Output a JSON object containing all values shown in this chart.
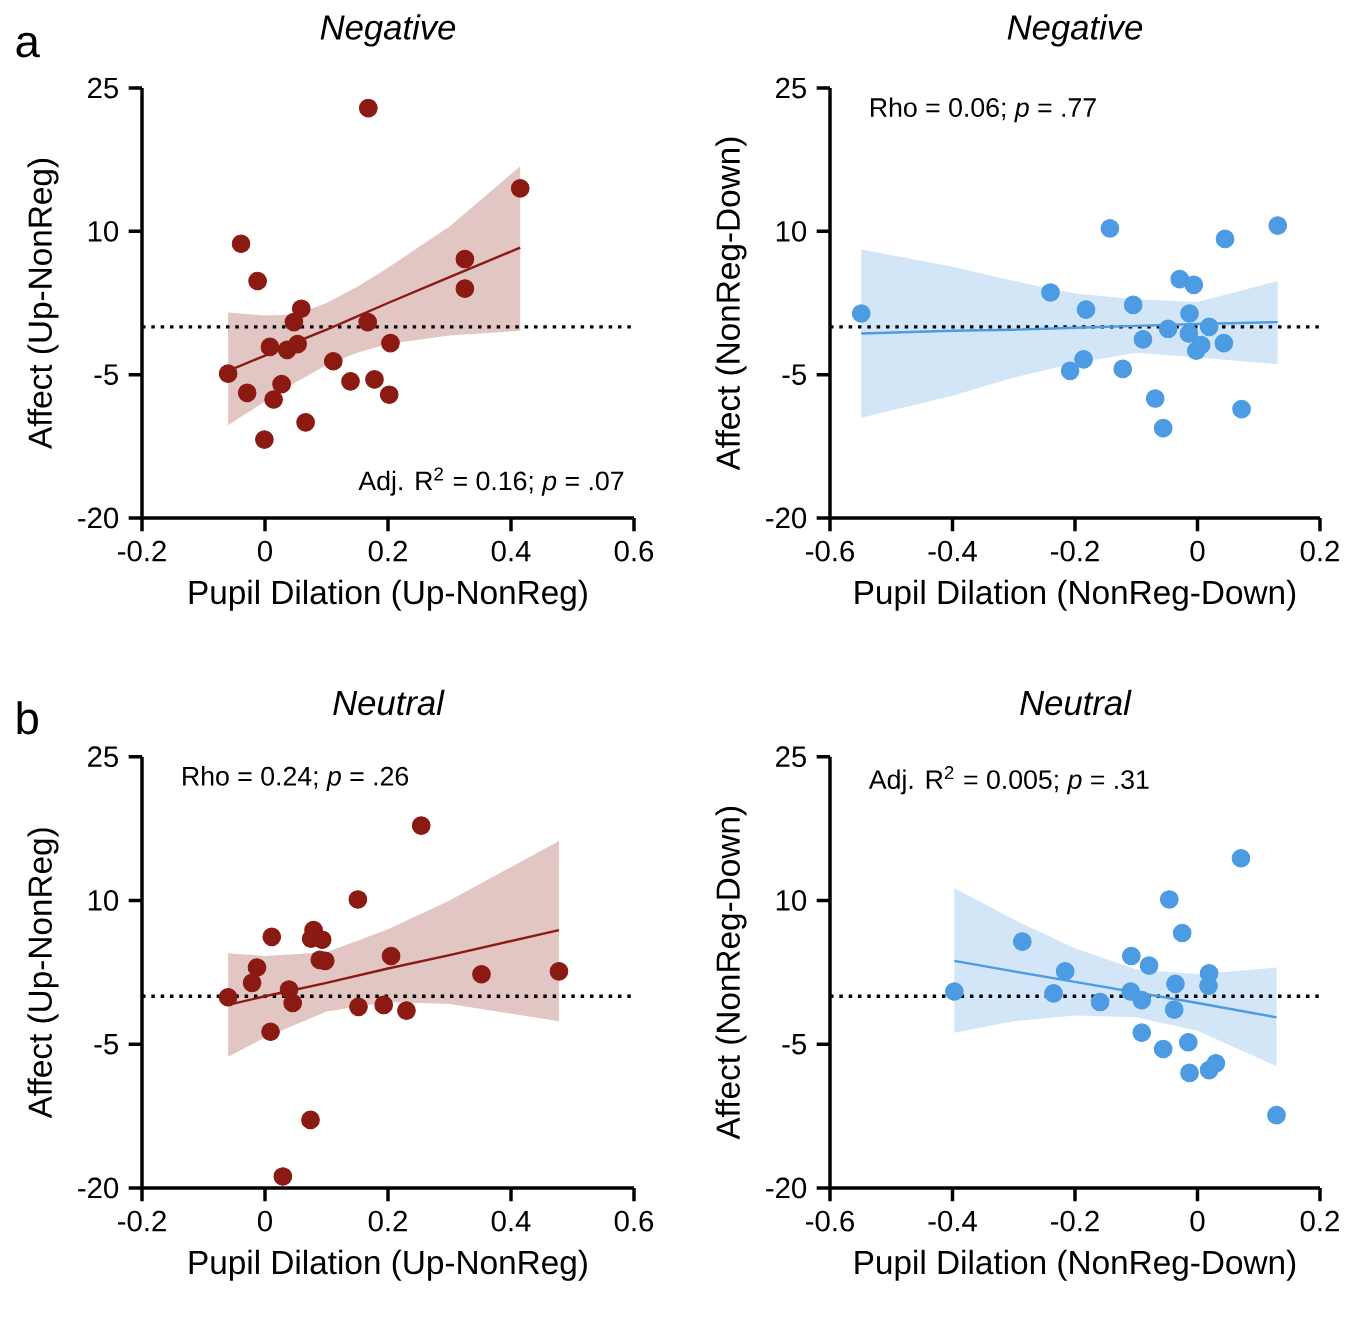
{
  "chart_data": [
    {
      "type": "scatter",
      "title": "Negative",
      "xlabel": "Pupil Dilation (Up-NonReg)",
      "ylabel": "Affect (Up-NonReg)",
      "xlim": [
        -0.2,
        0.6
      ],
      "ylim": [
        -20,
        25
      ],
      "xticks": [
        -0.2,
        0,
        0.2,
        0.4,
        0.6
      ],
      "yticks": [
        -20,
        -5,
        10,
        25
      ],
      "marker": "circle",
      "annotations": [
        "a",
        "Adj. R$^{2}$ = 0.16; *p* = .07"
      ],
      "ref_lines": [
        {
          "axis": "y",
          "value": 0,
          "line_style": "dotted",
          "color": "#000000"
        }
      ],
      "series": [
        {
          "type": "line",
          "marker": "none",
          "color": "#8b1a12",
          "x": [
            -0.06,
            0,
            0.05,
            0.1,
            0.15,
            0.2,
            0.3,
            0.415
          ],
          "values": [
            -4.6,
            -3.0,
            -1.6,
            -0.3,
            1.1,
            2.5,
            5.2,
            8.3
          ],
          "lower": [
            -10.3,
            -7.8,
            -5.8,
            -4.0,
            -2.7,
            -1.8,
            -0.9,
            -0.4
          ],
          "upper": [
            1.5,
            1.2,
            1.3,
            2.5,
            4.2,
            6.2,
            10.5,
            16.8
          ]
        },
        {
          "color": "#8b1a12",
          "x": [
            0.168,
            0.415,
            -0.039,
            -0.012,
            0.325,
            0.325,
            0.059,
            0.047,
            0.167,
            0.008,
            0.036,
            0.053,
            0.204,
            -0.06,
            0.111,
            -0.029,
            0.027,
            0.014,
            0.139,
            0.178,
            0.202,
            0.066,
            -0.001
          ],
          "values": [
            22.9,
            14.5,
            8.7,
            4.8,
            7.1,
            4.0,
            1.9,
            0.5,
            0.5,
            -2.1,
            -2.4,
            -1.8,
            -1.7,
            -4.9,
            -3.6,
            -6.9,
            -6.0,
            -7.6,
            -5.7,
            -5.5,
            -7.1,
            -10.0,
            -11.8
          ]
        }
      ]
    },
    {
      "type": "scatter",
      "title": "Negative",
      "xlabel": "Pupil Dilation (NonReg-Down)",
      "ylabel": "Affect (NonReg-Down)",
      "xlim": [
        -0.6,
        0.2
      ],
      "ylim": [
        -20,
        25
      ],
      "xticks": [
        -0.6,
        -0.4,
        -0.2,
        0,
        0.2
      ],
      "yticks": [
        -20,
        -5,
        10,
        25
      ],
      "marker": "circle",
      "annotations": [
        "Rho = 0.06; *p* = .77"
      ],
      "ref_lines": [
        {
          "axis": "y",
          "value": 0,
          "line_style": "dotted",
          "color": "#000000"
        }
      ],
      "series": [
        {
          "type": "line",
          "marker": "none",
          "color": "#4c9be3",
          "x": [
            -0.549,
            -0.4,
            -0.3,
            -0.2,
            -0.1,
            0,
            0.131
          ],
          "values": [
            -0.7,
            -0.4,
            -0.3,
            -0.1,
            0.1,
            0.3,
            0.5
          ],
          "lower": [
            -9.5,
            -7.2,
            -5.3,
            -3.8,
            -2.7,
            -3.2,
            -3.9
          ],
          "upper": [
            8.1,
            6.3,
            4.8,
            3.5,
            2.9,
            2.6,
            4.8
          ]
        },
        {
          "color": "#4c9be3",
          "x": [
            -0.549,
            -0.24,
            -0.143,
            -0.182,
            -0.105,
            -0.089,
            -0.208,
            -0.186,
            -0.122,
            -0.069,
            -0.056,
            -0.048,
            -0.029,
            -0.006,
            -0.013,
            -0.014,
            -0.002,
            0.006,
            0.019,
            0.043,
            0.045,
            0.072,
            0.131
          ],
          "values": [
            1.4,
            3.6,
            10.3,
            1.8,
            2.3,
            -1.3,
            -4.6,
            -3.4,
            -4.4,
            -7.5,
            -10.6,
            -0.2,
            5.0,
            4.4,
            1.4,
            -0.7,
            -2.5,
            -1.9,
            0.0,
            -1.7,
            9.2,
            -8.6,
            10.6
          ]
        }
      ]
    },
    {
      "type": "scatter",
      "title": "Neutral",
      "xlabel": "Pupil Dilation (Up-NonReg)",
      "ylabel": "Affect (Up-NonReg)",
      "xlim": [
        -0.2,
        0.6
      ],
      "ylim": [
        -20,
        25
      ],
      "xticks": [
        -0.2,
        0,
        0.2,
        0.4,
        0.6
      ],
      "yticks": [
        -20,
        -5,
        10,
        25
      ],
      "marker": "circle",
      "annotations": [
        "b",
        "Rho = 0.24; *p* = .26"
      ],
      "ref_lines": [
        {
          "axis": "y",
          "value": 0,
          "line_style": "dotted",
          "color": "#000000"
        }
      ],
      "series": [
        {
          "type": "line",
          "marker": "none",
          "color": "#8b1a12",
          "x": [
            -0.06,
            0,
            0.1,
            0.2,
            0.3,
            0.478
          ],
          "values": [
            -0.9,
            0.0,
            1.4,
            2.9,
            4.3,
            6.9
          ],
          "lower": [
            -6.3,
            -4.3,
            -1.6,
            -0.6,
            -0.8,
            -2.6
          ],
          "upper": [
            4.5,
            4.2,
            4.6,
            7.0,
            10.0,
            16.2
          ]
        },
        {
          "color": "#8b1a12",
          "x": [
            0.254,
            0.151,
            0.011,
            0.079,
            0.075,
            0.093,
            0.089,
            0.098,
            0.205,
            -0.013,
            -0.021,
            -0.06,
            0.039,
            0.045,
            0.009,
            0.152,
            0.193,
            0.23,
            0.352,
            0.478,
            0.074,
            0.029
          ],
          "values": [
            17.8,
            10.1,
            6.2,
            6.9,
            6.0,
            5.9,
            3.8,
            3.7,
            4.2,
            3.0,
            1.4,
            -0.1,
            0.7,
            -0.7,
            -3.7,
            -1.1,
            -0.9,
            -1.5,
            2.3,
            2.6,
            -12.9,
            -18.8
          ]
        }
      ]
    },
    {
      "type": "scatter",
      "title": "Neutral",
      "xlabel": "Pupil Dilation (NonReg-Down)",
      "ylabel": "Affect (NonReg-Down)",
      "xlim": [
        -0.6,
        0.2
      ],
      "ylim": [
        -20,
        25
      ],
      "xticks": [
        -0.6,
        -0.4,
        -0.2,
        0,
        0.2
      ],
      "yticks": [
        -20,
        -5,
        10,
        25
      ],
      "marker": "circle",
      "annotations": [
        "Adj. R$^{2}$ = 0.005; *p* = .31"
      ],
      "ref_lines": [
        {
          "axis": "y",
          "value": 0,
          "line_style": "dotted",
          "color": "#000000"
        }
      ],
      "series": [
        {
          "type": "line",
          "marker": "none",
          "color": "#4c9be3",
          "x": [
            -0.397,
            -0.3,
            -0.2,
            -0.1,
            0,
            0.129
          ],
          "values": [
            3.7,
            2.6,
            1.5,
            0.4,
            -0.7,
            -2.2
          ],
          "lower": [
            -3.8,
            -2.6,
            -2.0,
            -2.2,
            -3.6,
            -7.3
          ],
          "upper": [
            11.3,
            8.0,
            5.0,
            2.8,
            2.3,
            3.0
          ]
        },
        {
          "color": "#4c9be3",
          "x": [
            -0.397,
            -0.286,
            -0.235,
            -0.216,
            -0.159,
            -0.108,
            -0.109,
            -0.091,
            -0.079,
            -0.091,
            -0.056,
            -0.046,
            -0.036,
            -0.038,
            -0.025,
            -0.015,
            -0.013,
            0.019,
            0.018,
            0.019,
            0.03,
            0.071,
            0.129
          ],
          "values": [
            0.5,
            5.7,
            0.3,
            2.6,
            -0.6,
            4.2,
            0.5,
            -0.4,
            3.2,
            -3.8,
            -5.5,
            10.1,
            1.3,
            -1.4,
            6.6,
            -4.8,
            -8.0,
            2.4,
            1.1,
            -7.7,
            -7.0,
            14.4,
            -12.4
          ]
        }
      ]
    }
  ]
}
